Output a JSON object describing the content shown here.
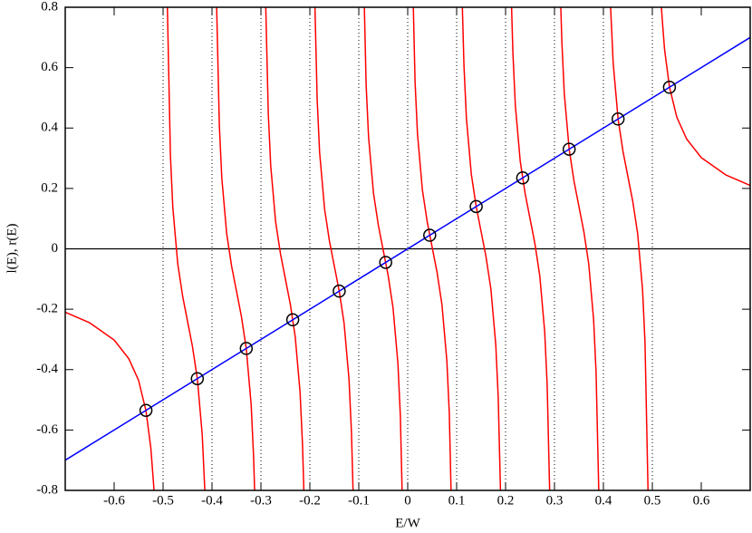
{
  "chart_data": {
    "type": "line",
    "xlabel": "E/W",
    "ylabel": "l(E), r(E)",
    "xlim": [
      -0.7,
      0.7
    ],
    "ylim": [
      -0.8,
      0.8
    ],
    "xticks": [
      -0.6,
      -0.5,
      -0.4,
      -0.3,
      -0.2,
      -0.1,
      0,
      0.1,
      0.2,
      0.3,
      0.4,
      0.5,
      0.6
    ],
    "yticks": [
      -0.8,
      -0.6,
      -0.4,
      -0.2,
      0,
      0.2,
      0.4,
      0.6,
      0.8
    ],
    "hline": 0,
    "hline_color": "#000000",
    "vlines": [
      -0.5,
      -0.4,
      -0.3,
      -0.2,
      -0.1,
      0,
      0.1,
      0.2,
      0.3,
      0.4,
      0.5
    ],
    "vline_style": "dotted",
    "series": [
      {
        "color": "#ff0000",
        "x": [
          -0.7,
          -0.65,
          -0.6,
          -0.57,
          -0.55,
          -0.535,
          -0.525,
          -0.52,
          -0.5185,
          null,
          -0.4912,
          -0.485,
          -0.48,
          -0.47,
          -0.46,
          -0.45,
          -0.44,
          -0.43,
          -0.42,
          -0.415,
          -0.4146,
          null,
          -0.3905,
          -0.385,
          -0.38,
          -0.37,
          -0.36,
          -0.35,
          -0.34,
          -0.33,
          -0.32,
          -0.315,
          -0.3129,
          null,
          -0.2901,
          -0.285,
          -0.28,
          -0.27,
          -0.26,
          -0.25,
          -0.24,
          -0.23,
          -0.22,
          -0.215,
          -0.2123,
          null,
          -0.1896,
          -0.185,
          -0.18,
          -0.17,
          -0.16,
          -0.15,
          -0.14,
          -0.13,
          -0.12,
          -0.115,
          -0.1117,
          null,
          -0.0886,
          -0.085,
          -0.08,
          -0.07,
          -0.06,
          -0.05,
          -0.04,
          -0.03,
          -0.02,
          -0.015,
          -0.0115,
          null,
          0.0115,
          0.015,
          0.02,
          0.03,
          0.04,
          0.05,
          0.06,
          0.07,
          0.08,
          0.085,
          0.0886,
          null,
          0.1117,
          0.115,
          0.12,
          0.13,
          0.14,
          0.15,
          0.16,
          0.17,
          0.18,
          0.185,
          0.1896,
          null,
          0.2123,
          0.215,
          0.22,
          0.23,
          0.24,
          0.25,
          0.26,
          0.27,
          0.28,
          0.285,
          0.2901,
          null,
          0.3129,
          0.315,
          0.32,
          0.33,
          0.34,
          0.35,
          0.36,
          0.37,
          0.38,
          0.385,
          0.3905,
          null,
          0.4146,
          0.415,
          0.42,
          0.43,
          0.44,
          0.45,
          0.46,
          0.47,
          0.48,
          0.485,
          0.4912,
          null,
          0.5185,
          0.52,
          0.525,
          0.535,
          0.55,
          0.57,
          0.6,
          0.65,
          0.7
        ],
        "values": [
          -0.21,
          -0.245,
          -0.302,
          -0.364,
          -0.436,
          -0.536,
          -0.66,
          -0.766,
          -0.8,
          null,
          0.8,
          0.309,
          0.135,
          -0.05,
          -0.157,
          -0.24,
          -0.323,
          -0.43,
          -0.615,
          -0.789,
          -0.8,
          null,
          0.8,
          0.409,
          0.235,
          0.05,
          -0.057,
          -0.14,
          -0.223,
          -0.33,
          -0.515,
          -0.689,
          -0.8,
          null,
          0.8,
          0.449,
          0.275,
          0.09,
          -0.017,
          -0.1,
          -0.183,
          -0.29,
          -0.475,
          -0.649,
          -0.8,
          null,
          0.8,
          0.492,
          0.318,
          0.133,
          0.026,
          -0.057,
          -0.14,
          -0.247,
          -0.432,
          -0.606,
          -0.8,
          null,
          0.8,
          0.544,
          0.37,
          0.185,
          0.078,
          -0.005,
          -0.088,
          -0.195,
          -0.38,
          -0.554,
          -0.8,
          null,
          0.8,
          0.554,
          0.38,
          0.195,
          0.088,
          0.005,
          -0.078,
          -0.185,
          -0.37,
          -0.544,
          -0.8,
          null,
          0.8,
          0.606,
          0.432,
          0.247,
          0.14,
          0.057,
          -0.026,
          -0.133,
          -0.318,
          -0.492,
          -0.8,
          null,
          0.8,
          0.649,
          0.475,
          0.29,
          0.183,
          0.1,
          0.017,
          -0.09,
          -0.275,
          -0.449,
          -0.8,
          null,
          0.8,
          0.689,
          0.515,
          0.33,
          0.223,
          0.14,
          0.057,
          -0.05,
          -0.235,
          -0.409,
          -0.8,
          null,
          0.8,
          0.789,
          0.615,
          0.43,
          0.323,
          0.24,
          0.157,
          0.05,
          -0.135,
          -0.309,
          -0.8,
          null,
          0.8,
          0.766,
          0.66,
          0.536,
          0.436,
          0.364,
          0.302,
          0.245,
          0.21
        ]
      },
      {
        "color": "#0000ff",
        "x": [
          -0.7,
          0.7
        ],
        "values": [
          -0.7,
          0.7
        ]
      }
    ],
    "points": {
      "color": "#000000",
      "marker": "circle",
      "x": [
        -0.535,
        -0.43,
        -0.33,
        -0.235,
        -0.14,
        -0.045,
        0.045,
        0.14,
        0.235,
        0.33,
        0.43,
        0.535
      ],
      "values": [
        -0.535,
        -0.43,
        -0.33,
        -0.235,
        -0.14,
        -0.045,
        0.045,
        0.14,
        0.235,
        0.33,
        0.43,
        0.535
      ]
    }
  }
}
